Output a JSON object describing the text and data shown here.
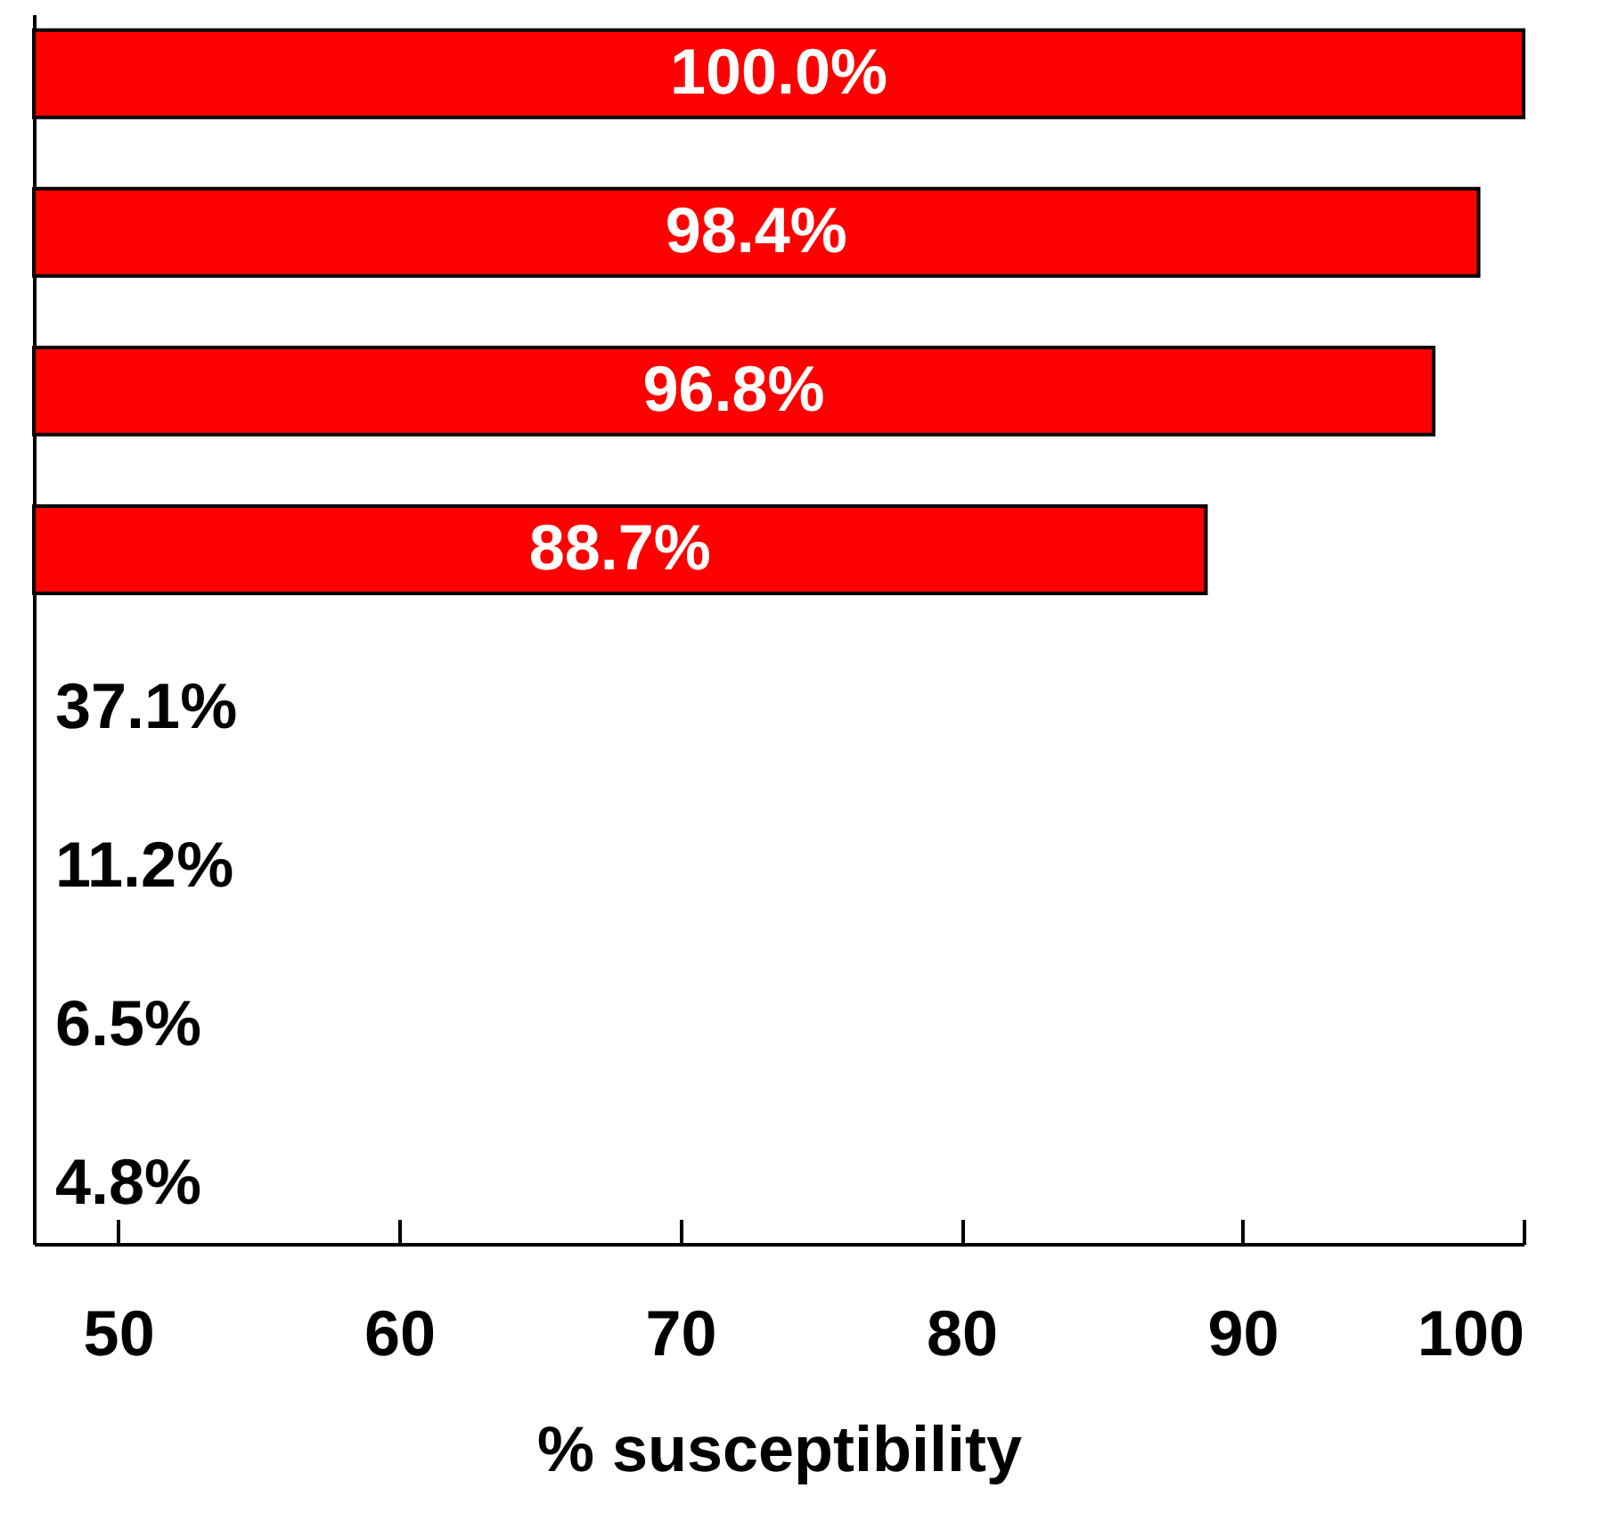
{
  "chart_data": {
    "type": "bar",
    "orientation": "horizontal",
    "xlabel": "% susceptibility",
    "categories": [
      null,
      null,
      null,
      null,
      null,
      null,
      null,
      null
    ],
    "values": [
      100.0,
      98.4,
      96.8,
      88.7,
      null,
      null,
      null,
      null
    ],
    "value_labels": [
      "100.0%",
      "98.4%",
      "96.8%",
      "88.7%",
      "37.1%",
      "11.2%",
      "6.5%",
      "4.8%"
    ],
    "color": "#ff0000",
    "xlim": [
      47,
      100
    ],
    "xticks": [
      50,
      60,
      70,
      80,
      90,
      100
    ],
    "grid": false,
    "tick_labels": "x"
  }
}
